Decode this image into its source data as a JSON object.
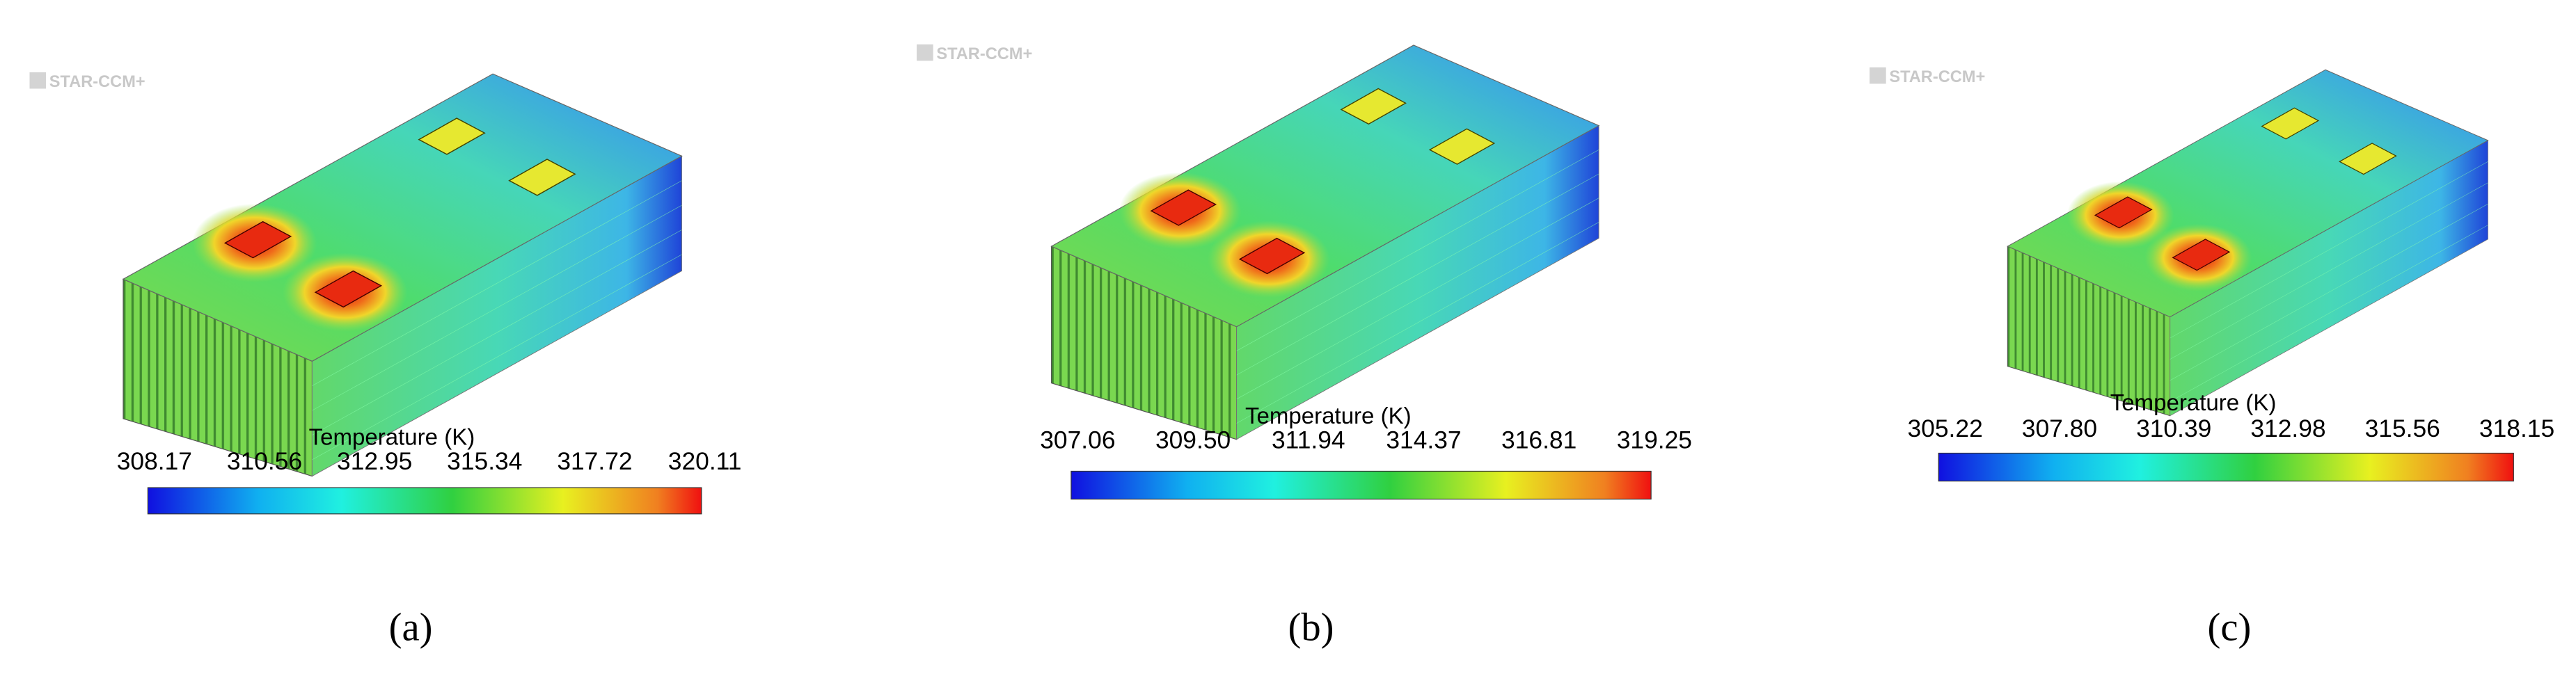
{
  "panels": [
    {
      "watermark": "STAR-CCM+",
      "colorbar": {
        "title": "Temperature (K)",
        "ticks": [
          "308.17",
          "310.56",
          "312.95",
          "315.34",
          "317.72",
          "320.11"
        ]
      },
      "caption": "(a)"
    },
    {
      "watermark": "STAR-CCM+",
      "colorbar": {
        "title": "Temperature (K)",
        "ticks": [
          "307.06",
          "309.50",
          "311.94",
          "314.37",
          "316.81",
          "319.25"
        ]
      },
      "caption": "(b)"
    },
    {
      "watermark": "STAR-CCM+",
      "colorbar": {
        "title": "Temperature (K)",
        "ticks": [
          "305.22",
          "307.80",
          "310.39",
          "312.98",
          "315.56",
          "318.15"
        ]
      },
      "caption": "(c)"
    }
  ]
}
